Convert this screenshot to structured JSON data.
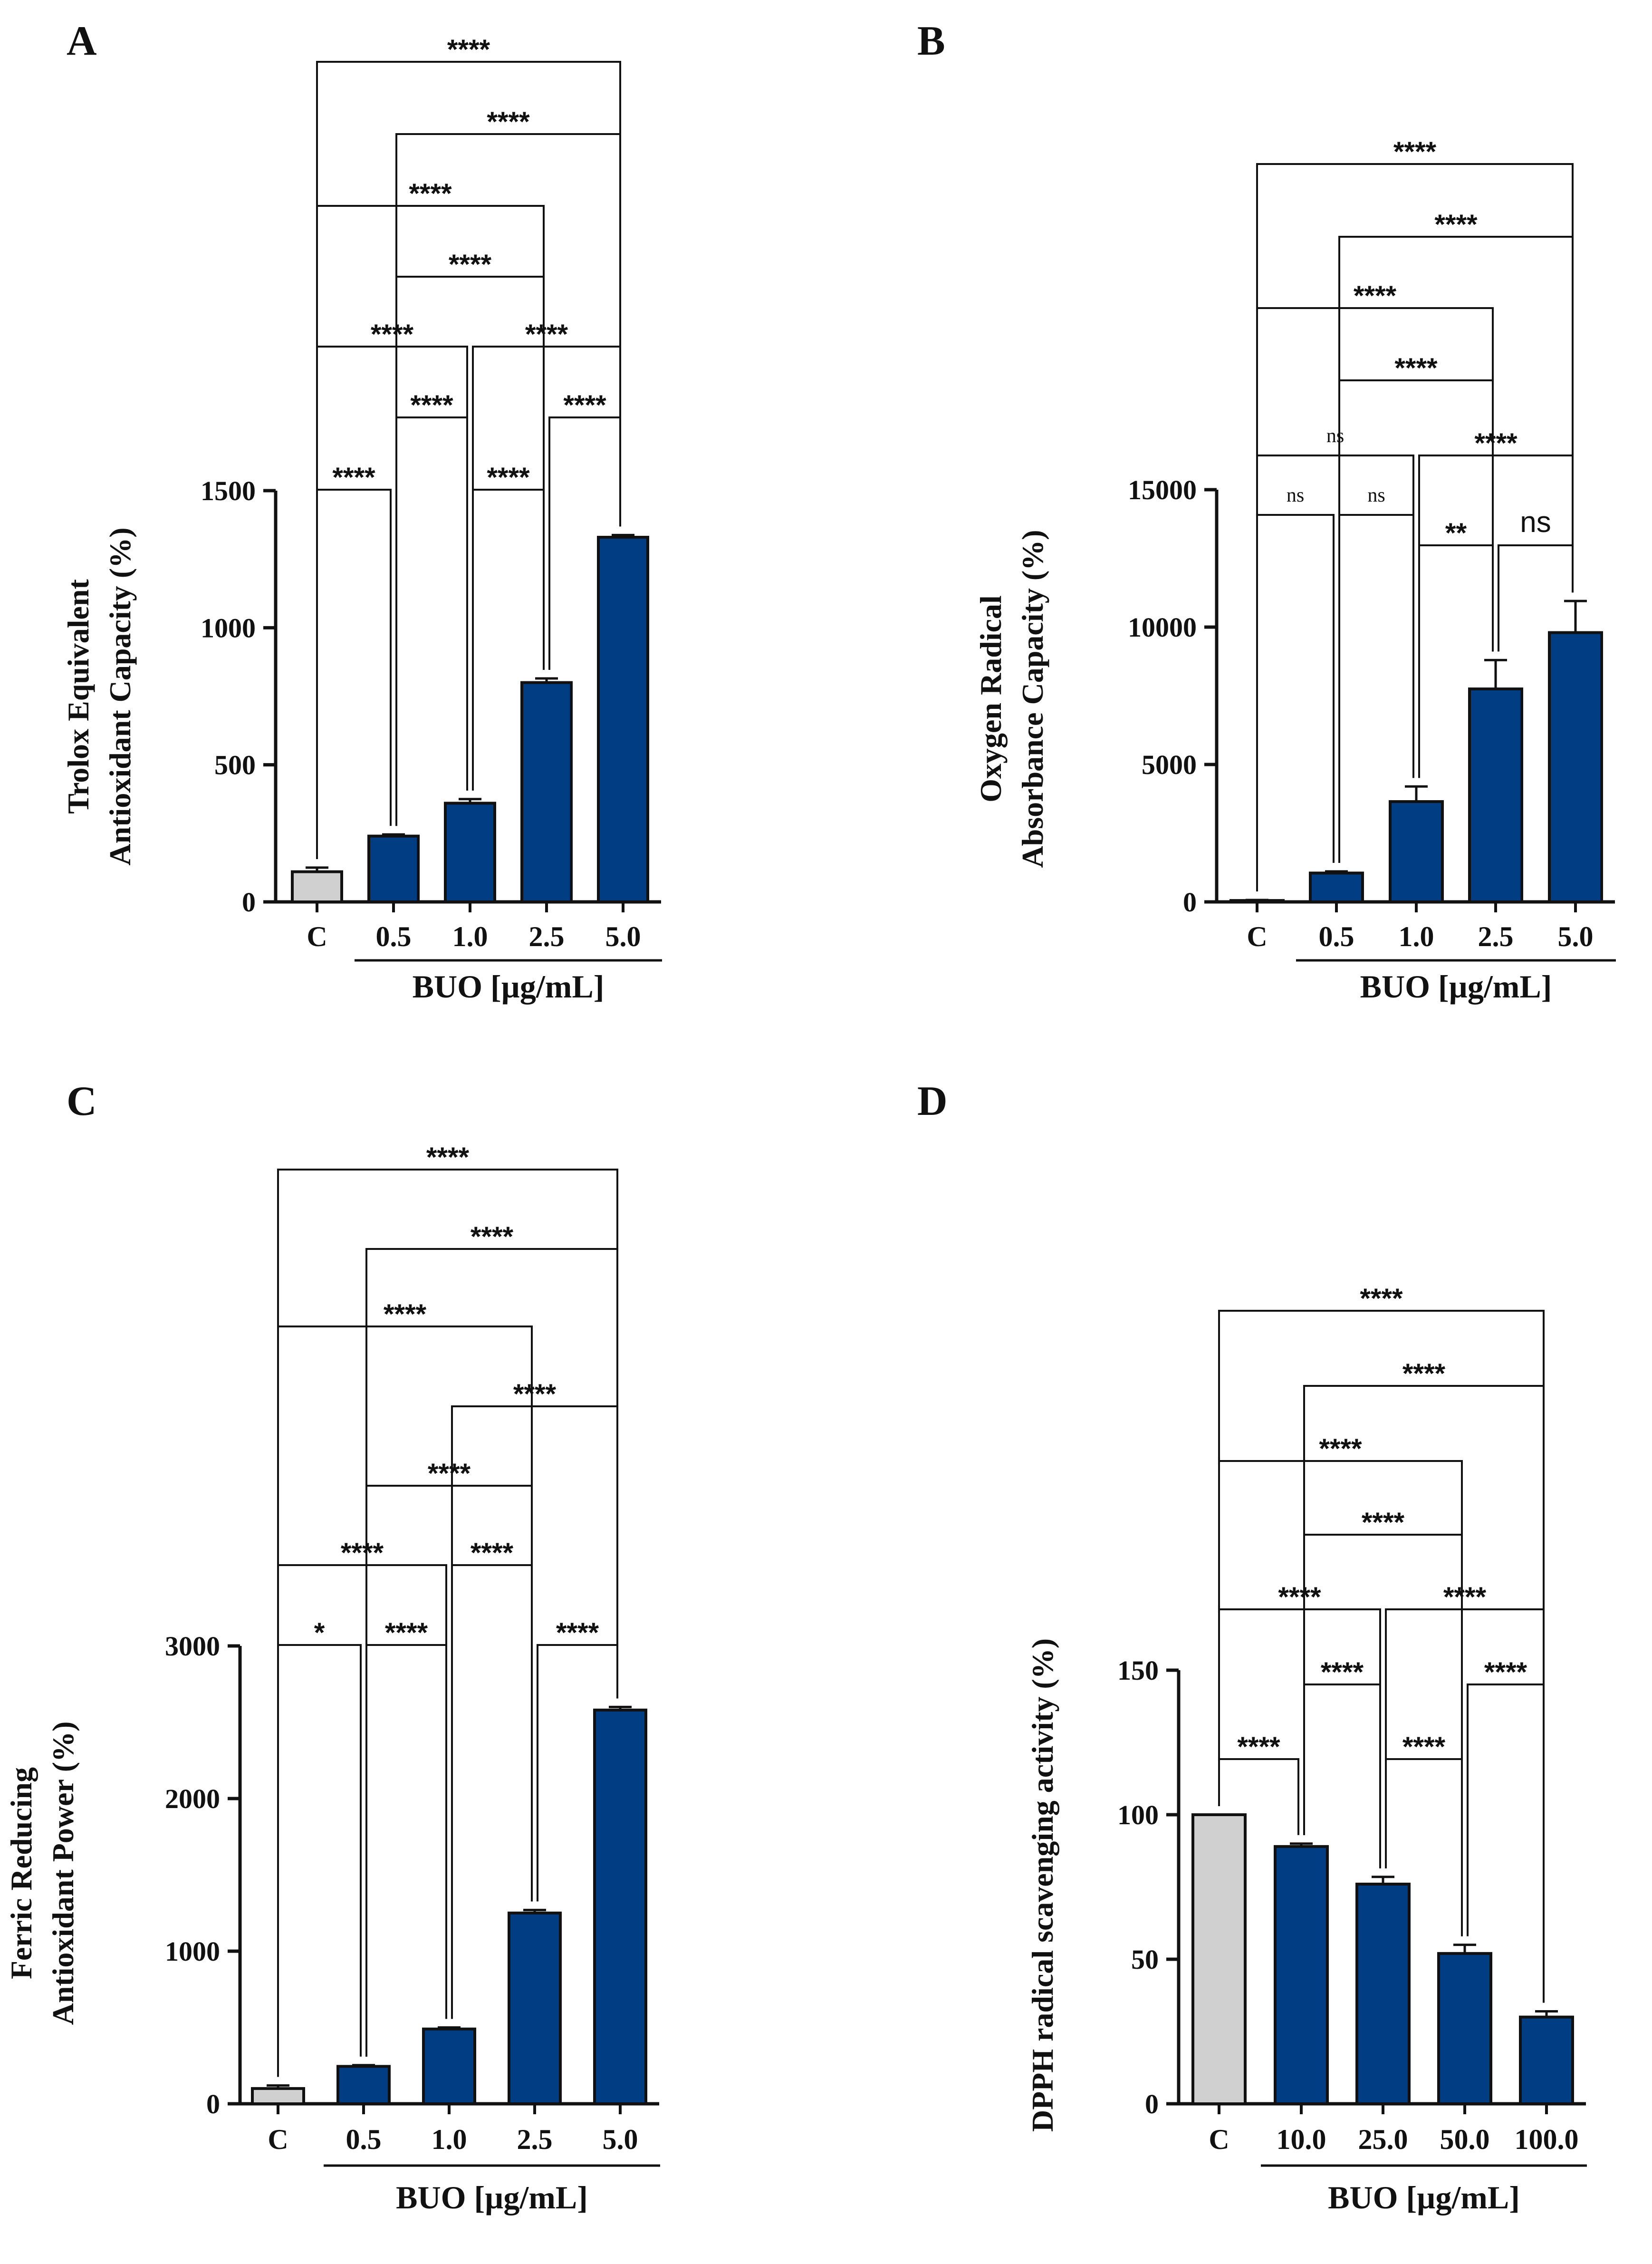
{
  "chart_data": [
    {
      "panel": "A",
      "type": "bar",
      "ylabel": [
        "Trolox Equivalent",
        "Antioxidant Capacity (%)"
      ],
      "ylim": [
        0,
        1500
      ],
      "yticks": [
        0,
        500,
        1000,
        1500
      ],
      "categories": [
        "C",
        "0.5",
        "1.0",
        "2.5",
        "5.0"
      ],
      "values": [
        110,
        240,
        360,
        800,
        1330
      ],
      "errors": [
        15,
        6,
        15,
        15,
        8
      ],
      "colors": [
        "#d0d0d0",
        "#003d82",
        "#003d82",
        "#003d82",
        "#003d82"
      ],
      "xgroup_label": "BUO [µg/mL]",
      "xgroup_span": [
        1,
        4
      ],
      "comparisons": [
        {
          "from": 0,
          "to": 1,
          "label": "****"
        },
        {
          "from": 2,
          "to": 3,
          "label": "****"
        },
        {
          "from": 1,
          "to": 2,
          "label": "****"
        },
        {
          "from": 3,
          "to": 4,
          "label": "****"
        },
        {
          "from": 0,
          "to": 2,
          "label": "****"
        },
        {
          "from": 2,
          "to": 4,
          "label": "****"
        },
        {
          "from": 1,
          "to": 3,
          "label": "****"
        },
        {
          "from": 0,
          "to": 3,
          "label": "****"
        },
        {
          "from": 1,
          "to": 4,
          "label": "****"
        },
        {
          "from": 0,
          "to": 4,
          "label": "****"
        }
      ]
    },
    {
      "panel": "B",
      "type": "bar",
      "ylabel": [
        "Oxygen Radical",
        "Absorbance Capacity (%)"
      ],
      "ylim": [
        0,
        15000
      ],
      "yticks": [
        0,
        5000,
        10000,
        15000
      ],
      "categories": [
        "C",
        "0.5",
        "1.0",
        "2.5",
        "5.0"
      ],
      "values": [
        50,
        1050,
        3650,
        7750,
        9800
      ],
      "errors": [
        20,
        60,
        550,
        1050,
        1150
      ],
      "colors": [
        "#d0d0d0",
        "#003d82",
        "#003d82",
        "#003d82",
        "#003d82"
      ],
      "xgroup_label": "BUO [µg/mL]",
      "xgroup_span": [
        1,
        4
      ],
      "comparisons": [
        {
          "from": 0,
          "to": 1,
          "label": "ns",
          "style": "ns-small"
        },
        {
          "from": 1,
          "to": 2,
          "label": "ns",
          "style": "ns-small"
        },
        {
          "from": 2,
          "to": 3,
          "label": "**"
        },
        {
          "from": 3,
          "to": 4,
          "label": "ns",
          "style": "ns-large"
        },
        {
          "from": 0,
          "to": 2,
          "label": "ns",
          "style": "ns-small"
        },
        {
          "from": 2,
          "to": 4,
          "label": "****"
        },
        {
          "from": 1,
          "to": 3,
          "label": "****"
        },
        {
          "from": 0,
          "to": 3,
          "label": "****"
        },
        {
          "from": 1,
          "to": 4,
          "label": "****"
        },
        {
          "from": 0,
          "to": 4,
          "label": "****"
        }
      ]
    },
    {
      "panel": "C",
      "type": "bar",
      "ylabel": [
        "Ferric Reducing",
        "Antioxidant Power (%)"
      ],
      "ylim": [
        0,
        3000
      ],
      "yticks": [
        0,
        1000,
        2000,
        3000
      ],
      "categories": [
        "C",
        "0.5",
        "1.0",
        "2.5",
        "5.0"
      ],
      "values": [
        100,
        245,
        490,
        1250,
        2580
      ],
      "errors": [
        20,
        8,
        10,
        20,
        20
      ],
      "colors": [
        "#d0d0d0",
        "#003d82",
        "#003d82",
        "#003d82",
        "#003d82"
      ],
      "xgroup_label": "BUO [µg/mL]",
      "xgroup_span": [
        1,
        4
      ],
      "comparisons": [
        {
          "from": 0,
          "to": 1,
          "label": "*"
        },
        {
          "from": 1,
          "to": 2,
          "label": "****"
        },
        {
          "from": 3,
          "to": 4,
          "label": "****"
        },
        {
          "from": 0,
          "to": 2,
          "label": "****"
        },
        {
          "from": 2,
          "to": 3,
          "label": "****"
        },
        {
          "from": 1,
          "to": 3,
          "label": "****"
        },
        {
          "from": 2,
          "to": 4,
          "label": "****"
        },
        {
          "from": 0,
          "to": 3,
          "label": "****"
        },
        {
          "from": 1,
          "to": 4,
          "label": "****"
        },
        {
          "from": 0,
          "to": 4,
          "label": "****"
        }
      ]
    },
    {
      "panel": "D",
      "type": "bar",
      "ylabel": [
        "DPPH radical scavenging activity (%)"
      ],
      "ylim": [
        0,
        150
      ],
      "yticks": [
        0,
        50,
        100,
        150
      ],
      "categories": [
        "C",
        "10.0",
        "25.0",
        "50.0",
        "100.0"
      ],
      "values": [
        100,
        89,
        76,
        52,
        30
      ],
      "errors": [
        0,
        1,
        2.5,
        3,
        2
      ],
      "colors": [
        "#d0d0d0",
        "#003d82",
        "#003d82",
        "#003d82",
        "#003d82"
      ],
      "xgroup_label": "BUO [µg/mL]",
      "xgroup_span": [
        1,
        4
      ],
      "comparisons": [
        {
          "from": 0,
          "to": 1,
          "label": "****"
        },
        {
          "from": 2,
          "to": 3,
          "label": "****"
        },
        {
          "from": 1,
          "to": 2,
          "label": "****"
        },
        {
          "from": 3,
          "to": 4,
          "label": "****"
        },
        {
          "from": 0,
          "to": 2,
          "label": "****"
        },
        {
          "from": 2,
          "to": 4,
          "label": "****"
        },
        {
          "from": 1,
          "to": 3,
          "label": "****"
        },
        {
          "from": 0,
          "to": 3,
          "label": "****"
        },
        {
          "from": 1,
          "to": 4,
          "label": "****"
        },
        {
          "from": 0,
          "to": 4,
          "label": "****"
        }
      ]
    }
  ]
}
